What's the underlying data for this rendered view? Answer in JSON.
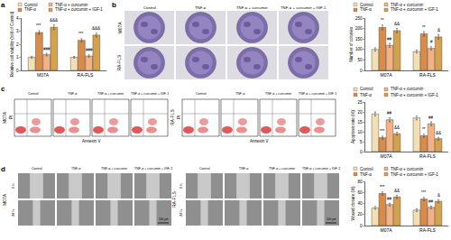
{
  "figure": {
    "panel_labels": [
      "a",
      "b",
      "c",
      "d"
    ],
    "colony_images": {
      "columns": [
        "Control",
        "TNF-α",
        "TNF-α + curcumin",
        "TNF-α + curcumin + IGF-1"
      ],
      "rows": [
        "M07A",
        "RA-FLS"
      ]
    },
    "flow_plots": {
      "columns": [
        "Control",
        "TNF-α",
        "TNF-α + curcumin",
        "TNF-α + curcumin + IGF-1"
      ],
      "groups": [
        "M07A",
        "RA-FLS"
      ],
      "x_label": "Annexin V",
      "y_label": "PI"
    },
    "wound_images": {
      "columns": [
        "Control",
        "TNF-α",
        "TNF-α + curcumin",
        "TNF-α + curcumin + IGF-1"
      ],
      "groups": [
        "M07A",
        "RA-FLS"
      ],
      "rows": [
        "0 h",
        "24 h"
      ],
      "scale_bar": "100 μm"
    }
  },
  "chart_data": [
    {
      "type": "bar",
      "ylabel": "Relative cell viability (fold of Control)",
      "categories": [
        "M07A",
        "RA-FLS"
      ],
      "series": [
        {
          "name": "Control",
          "color": "#f2dfb4",
          "values": [
            1.0,
            1.0
          ],
          "errors": [
            0.08,
            0.07
          ]
        },
        {
          "name": "TNF-α",
          "color": "#d98b4a",
          "values": [
            2.9,
            2.3
          ],
          "errors": [
            0.15,
            0.12
          ]
        },
        {
          "name": "TNF-α + curcumin",
          "color": "#f4b183",
          "values": [
            1.2,
            1.1
          ],
          "errors": [
            0.1,
            0.09
          ]
        },
        {
          "name": "TNF-α + curcumin + IGF-1",
          "color": "#d4a24c",
          "values": [
            3.3,
            2.7
          ],
          "errors": [
            0.18,
            0.14
          ]
        }
      ],
      "ylim": [
        0,
        4
      ],
      "yticks": [
        0,
        1,
        2,
        3,
        4
      ],
      "grid": false,
      "legend": "top left",
      "annotations": [
        {
          "category": "M07A",
          "series": "TNF-α",
          "text": "***"
        },
        {
          "category": "M07A",
          "series": "TNF-α + curcumin",
          "text": "###"
        },
        {
          "category": "M07A",
          "series": "TNF-α + curcumin + IGF-1",
          "text": "&&&"
        },
        {
          "category": "RA-FLS",
          "series": "TNF-α",
          "text": "***"
        },
        {
          "category": "RA-FLS",
          "series": "TNF-α + curcumin",
          "text": "###"
        },
        {
          "category": "RA-FLS",
          "series": "TNF-α + curcumin + IGF-1",
          "text": "&&&"
        }
      ]
    },
    {
      "type": "bar",
      "ylabel": "Number of colonies",
      "categories": [
        "M07A",
        "RA-FLS"
      ],
      "series": [
        {
          "name": "Control",
          "color": "#f2dfb4",
          "values": [
            100,
            90
          ],
          "errors": [
            8,
            7
          ]
        },
        {
          "name": "TNF-α",
          "color": "#d98b4a",
          "values": [
            205,
            175
          ],
          "errors": [
            12,
            10
          ]
        },
        {
          "name": "TNF-α + curcumin",
          "color": "#f4b183",
          "values": [
            120,
            105
          ],
          "errors": [
            9,
            8
          ]
        },
        {
          "name": "TNF-α + curcumin + IGF-1",
          "color": "#d4a24c",
          "values": [
            190,
            160
          ],
          "errors": [
            11,
            10
          ]
        }
      ],
      "ylim": [
        0,
        250
      ],
      "yticks": [
        0,
        50,
        100,
        150,
        200,
        250
      ],
      "grid": false,
      "legend": "top left",
      "annotations": [
        {
          "category": "M07A",
          "series": "TNF-α",
          "text": "**"
        },
        {
          "category": "M07A",
          "series": "TNF-α + curcumin",
          "text": "##"
        },
        {
          "category": "M07A",
          "series": "TNF-α + curcumin + IGF-1",
          "text": "&&"
        },
        {
          "category": "RA-FLS",
          "series": "TNF-α",
          "text": "**"
        },
        {
          "category": "RA-FLS",
          "series": "TNF-α + curcumin",
          "text": "#"
        },
        {
          "category": "RA-FLS",
          "series": "TNF-α + curcumin + IGF-1",
          "text": "&"
        }
      ]
    },
    {
      "type": "bar",
      "ylabel": "Apoptosis rate (%)",
      "categories": [
        "M07A",
        "RA-FLS"
      ],
      "series": [
        {
          "name": "Control",
          "color": "#f2dfb4",
          "values": [
            19,
            17
          ],
          "errors": [
            1,
            1
          ]
        },
        {
          "name": "TNF-α",
          "color": "#d98b4a",
          "values": [
            7,
            8
          ],
          "errors": [
            0.8,
            0.8
          ]
        },
        {
          "name": "TNF-α + curcumin",
          "color": "#f4b183",
          "values": [
            16,
            14
          ],
          "errors": [
            1,
            1
          ]
        },
        {
          "name": "TNF-α + curcumin + IGF-1",
          "color": "#d4a24c",
          "values": [
            9,
            6.5
          ],
          "errors": [
            0.8,
            0.7
          ]
        }
      ],
      "ylim": [
        0,
        25
      ],
      "yticks": [
        0,
        5,
        10,
        15,
        20,
        25
      ],
      "grid": false,
      "legend": "top left",
      "annotations": [
        {
          "category": "M07A",
          "series": "TNF-α",
          "text": "***"
        },
        {
          "category": "M07A",
          "series": "TNF-α + curcumin",
          "text": "##"
        },
        {
          "category": "M07A",
          "series": "TNF-α + curcumin + IGF-1",
          "text": "&&"
        },
        {
          "category": "RA-FLS",
          "series": "TNF-α",
          "text": "**"
        },
        {
          "category": "RA-FLS",
          "series": "TNF-α + curcumin",
          "text": "##"
        },
        {
          "category": "RA-FLS",
          "series": "TNF-α + curcumin + IGF-1",
          "text": "&&"
        }
      ]
    },
    {
      "type": "bar",
      "ylabel": "Wound closure (%)",
      "categories": [
        "M07A",
        "RA-FLS"
      ],
      "series": [
        {
          "name": "Control",
          "color": "#f2dfb4",
          "values": [
            32,
            28
          ],
          "errors": [
            2.5,
            2.5
          ]
        },
        {
          "name": "TNF-α",
          "color": "#d98b4a",
          "values": [
            58,
            48
          ],
          "errors": [
            3,
            3
          ]
        },
        {
          "name": "TNF-α + curcumin",
          "color": "#f4b183",
          "values": [
            38,
            33
          ],
          "errors": [
            2.5,
            2.5
          ]
        },
        {
          "name": "TNF-α + curcumin + IGF-1",
          "color": "#d4a24c",
          "values": [
            52,
            44
          ],
          "errors": [
            3,
            3
          ]
        }
      ],
      "ylim": [
        0,
        80
      ],
      "yticks": [
        0,
        20,
        40,
        60,
        80
      ],
      "grid": false,
      "legend": "top left",
      "annotations": [
        {
          "category": "M07A",
          "series": "TNF-α",
          "text": "***"
        },
        {
          "category": "M07A",
          "series": "TNF-α + curcumin",
          "text": "##"
        },
        {
          "category": "M07A",
          "series": "TNF-α + curcumin + IGF-1",
          "text": "&&"
        },
        {
          "category": "RA-FLS",
          "series": "TNF-α",
          "text": "***"
        },
        {
          "category": "RA-FLS",
          "series": "TNF-α + curcumin",
          "text": "##"
        },
        {
          "category": "RA-FLS",
          "series": "TNF-α + curcumin + IGF-1",
          "text": "&"
        }
      ]
    }
  ]
}
